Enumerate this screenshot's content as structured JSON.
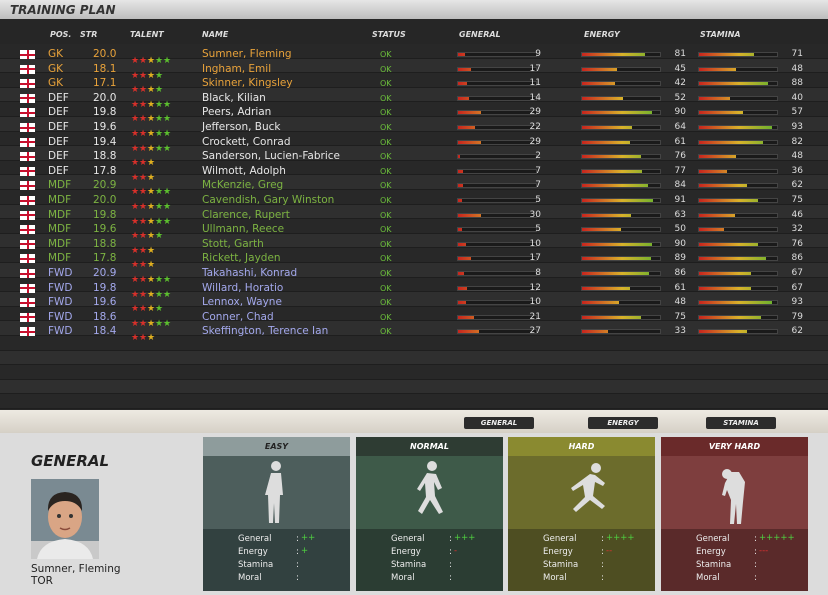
{
  "header": {
    "title": "TRAINING PLAN"
  },
  "table": {
    "columns": [
      "POS.",
      "STR",
      "TALENT",
      "NAME",
      "STATUS",
      "GENERAL",
      "ENERGY",
      "STAMINA"
    ],
    "rows": [
      {
        "pos": "GK",
        "str": "20.0",
        "talent": 5,
        "name": "Sumner, Fleming",
        "status": "OK",
        "general": 9,
        "energy": 81,
        "stamina": 71
      },
      {
        "pos": "GK",
        "str": "18.1",
        "talent": 4,
        "name": "Ingham, Emil",
        "status": "OK",
        "general": 17,
        "energy": 45,
        "stamina": 48
      },
      {
        "pos": "GK",
        "str": "17.1",
        "talent": 4,
        "name": "Skinner, Kingsley",
        "status": "OK",
        "general": 11,
        "energy": 42,
        "stamina": 88
      },
      {
        "pos": "DEF",
        "str": "20.0",
        "talent": 5,
        "name": "Black, Kilian",
        "status": "OK",
        "general": 14,
        "energy": 52,
        "stamina": 40
      },
      {
        "pos": "DEF",
        "str": "19.8",
        "talent": 5,
        "name": "Peers, Adrian",
        "status": "OK",
        "general": 29,
        "energy": 90,
        "stamina": 57
      },
      {
        "pos": "DEF",
        "str": "19.6",
        "talent": 5,
        "name": "Jefferson, Buck",
        "status": "OK",
        "general": 22,
        "energy": 64,
        "stamina": 93
      },
      {
        "pos": "DEF",
        "str": "19.4",
        "talent": 5,
        "name": "Crockett, Conrad",
        "status": "OK",
        "general": 29,
        "energy": 61,
        "stamina": 82
      },
      {
        "pos": "DEF",
        "str": "18.8",
        "talent": 3,
        "name": "Sanderson, Lucien-Fabrice",
        "status": "OK",
        "general": 2,
        "energy": 76,
        "stamina": 48
      },
      {
        "pos": "DEF",
        "str": "17.8",
        "talent": 3,
        "name": "Wilmott, Adolph",
        "status": "OK",
        "general": 7,
        "energy": 77,
        "stamina": 36
      },
      {
        "pos": "MDF",
        "str": "20.9",
        "talent": 5,
        "name": "McKenzie, Greg",
        "status": "OK",
        "general": 7,
        "energy": 84,
        "stamina": 62
      },
      {
        "pos": "MDF",
        "str": "20.0",
        "talent": 5,
        "name": "Cavendish, Gary Winston",
        "status": "OK",
        "general": 5,
        "energy": 91,
        "stamina": 75
      },
      {
        "pos": "MDF",
        "str": "19.8",
        "talent": 5,
        "name": "Clarence, Rupert",
        "status": "OK",
        "general": 30,
        "energy": 63,
        "stamina": 46
      },
      {
        "pos": "MDF",
        "str": "19.6",
        "talent": 4,
        "name": "Ullmann, Reece",
        "status": "OK",
        "general": 5,
        "energy": 50,
        "stamina": 32
      },
      {
        "pos": "MDF",
        "str": "18.8",
        "talent": 3,
        "name": "Stott, Garth",
        "status": "OK",
        "general": 10,
        "energy": 90,
        "stamina": 76
      },
      {
        "pos": "MDF",
        "str": "17.8",
        "talent": 3,
        "name": "Rickett, Jayden",
        "status": "OK",
        "general": 17,
        "energy": 89,
        "stamina": 86
      },
      {
        "pos": "FWD",
        "str": "20.9",
        "talent": 5,
        "name": "Takahashi, Konrad",
        "status": "OK",
        "general": 8,
        "energy": 86,
        "stamina": 67
      },
      {
        "pos": "FWD",
        "str": "19.8",
        "talent": 5,
        "name": "Willard, Horatio",
        "status": "OK",
        "general": 12,
        "energy": 61,
        "stamina": 67
      },
      {
        "pos": "FWD",
        "str": "19.6",
        "talent": 4,
        "name": "Lennox, Wayne",
        "status": "OK",
        "general": 10,
        "energy": 48,
        "stamina": 93
      },
      {
        "pos": "FWD",
        "str": "18.6",
        "talent": 5,
        "name": "Conner, Chad",
        "status": "OK",
        "general": 21,
        "energy": 75,
        "stamina": 79
      },
      {
        "pos": "FWD",
        "str": "18.4",
        "talent": 3,
        "name": "Skeffington, Terence Ian",
        "status": "OK",
        "general": 27,
        "energy": 33,
        "stamina": 62
      }
    ]
  },
  "tabs": [
    "GENERAL",
    "ENERGY",
    "STAMINA"
  ],
  "detail": {
    "title": "GENERAL",
    "player_name": "Sumner, Fleming",
    "club": "TOR"
  },
  "intensities": [
    {
      "label": "EASY",
      "effects": [
        {
          "label": "General",
          "value": "++"
        },
        {
          "label": "Energy",
          "value": "+"
        },
        {
          "label": "Stamina"
        },
        {
          "label": "Moral"
        }
      ]
    },
    {
      "label": "NORMAL",
      "effects": [
        {
          "label": "General",
          "value": "+++"
        },
        {
          "label": "Energy",
          "value": "-"
        },
        {
          "label": "Stamina"
        },
        {
          "label": "Moral"
        }
      ]
    },
    {
      "label": "HARD",
      "effects": [
        {
          "label": "General",
          "value": "++++"
        },
        {
          "label": "Energy",
          "value": "--"
        },
        {
          "label": "Stamina"
        },
        {
          "label": "Moral"
        }
      ]
    },
    {
      "label": "VERY HARD",
      "effects": [
        {
          "label": "General",
          "value": "+++++"
        },
        {
          "label": "Energy",
          "value": "---"
        },
        {
          "label": "Stamina"
        },
        {
          "label": "Moral"
        }
      ]
    }
  ]
}
